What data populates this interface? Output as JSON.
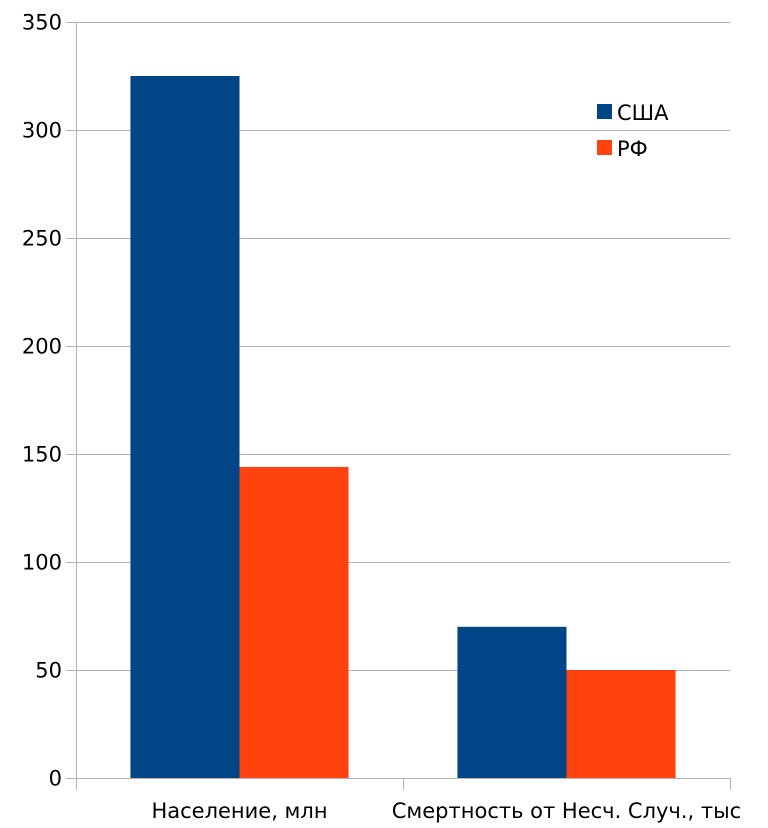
{
  "chart_data": {
    "type": "bar",
    "categories": [
      "Население, млн",
      "Смертность от Несч. Случ., тыс"
    ],
    "series": [
      {
        "name": "США",
        "values": [
          325,
          70
        ],
        "color": "#004586"
      },
      {
        "name": "РФ",
        "values": [
          144,
          50
        ],
        "color": "#ff420e"
      }
    ],
    "ylim": [
      0,
      350
    ],
    "yticks": [
      0,
      50,
      100,
      150,
      200,
      250,
      300,
      350
    ],
    "grid": true,
    "legend_position": "top-right",
    "title": "",
    "xlabel": "",
    "ylabel": ""
  }
}
